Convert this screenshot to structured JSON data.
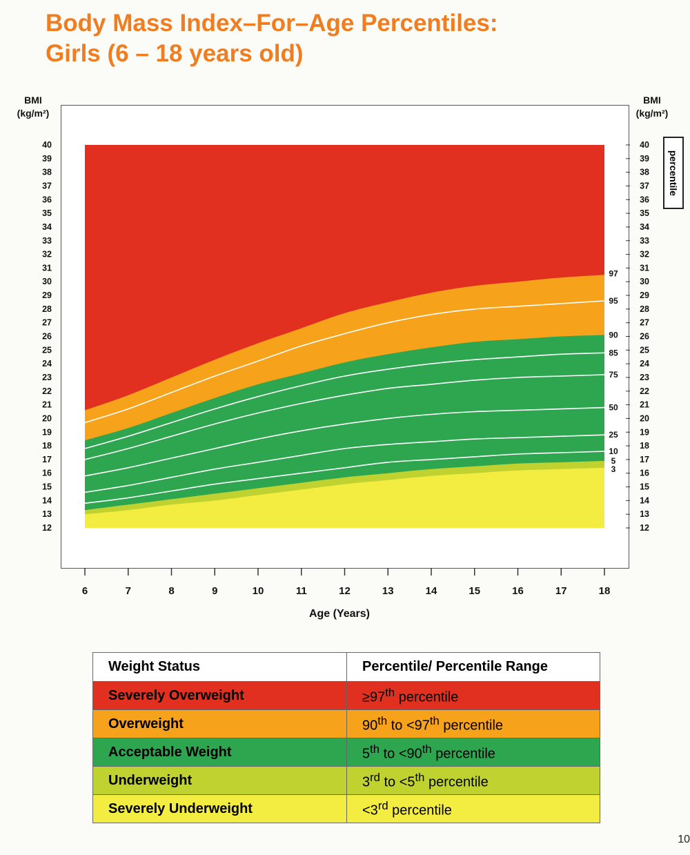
{
  "title_line1": "Body Mass Index–For–Age Percentiles:",
  "title_line2": "Girls (6 – 18 years old)",
  "y_unit_top": "BMI",
  "y_unit_bottom": "(kg/m²)",
  "percentile_box": "percentile",
  "page_number": "10",
  "chart_data": {
    "type": "area",
    "title": "Body Mass Index–For–Age Percentiles: Girls (6 – 18 years old)",
    "xlabel": "Age (Years)",
    "ylabel": "BMI (kg/m²)",
    "xlim": [
      6,
      18
    ],
    "ylim": [
      12,
      40
    ],
    "x_ticks": [
      6,
      7,
      8,
      9,
      10,
      11,
      12,
      13,
      14,
      15,
      16,
      17,
      18
    ],
    "y_ticks": [
      12,
      13,
      14,
      15,
      16,
      17,
      18,
      19,
      20,
      21,
      22,
      23,
      24,
      25,
      26,
      27,
      28,
      29,
      30,
      31,
      32,
      33,
      34,
      35,
      36,
      37,
      38,
      39,
      40
    ],
    "x": [
      6,
      7,
      8,
      9,
      10,
      11,
      12,
      13,
      14,
      15,
      16,
      17,
      18
    ],
    "series": [
      {
        "name": "97",
        "values": [
          20.6,
          21.7,
          23.0,
          24.3,
          25.5,
          26.6,
          27.7,
          28.5,
          29.2,
          29.7,
          30.0,
          30.3,
          30.5
        ]
      },
      {
        "name": "95",
        "values": [
          19.7,
          20.7,
          21.9,
          23.1,
          24.2,
          25.3,
          26.2,
          27.0,
          27.6,
          28.0,
          28.2,
          28.4,
          28.6
        ]
      },
      {
        "name": "90",
        "values": [
          18.4,
          19.3,
          20.4,
          21.5,
          22.5,
          23.3,
          24.1,
          24.7,
          25.2,
          25.6,
          25.8,
          26.0,
          26.1
        ]
      },
      {
        "name": "85",
        "values": [
          17.8,
          18.7,
          19.7,
          20.7,
          21.6,
          22.4,
          23.1,
          23.6,
          24.0,
          24.3,
          24.5,
          24.7,
          24.8
        ]
      },
      {
        "name": "75",
        "values": [
          17.0,
          17.8,
          18.7,
          19.6,
          20.4,
          21.1,
          21.7,
          22.2,
          22.5,
          22.8,
          23.0,
          23.1,
          23.2
        ]
      },
      {
        "name": "50",
        "values": [
          15.8,
          16.4,
          17.1,
          17.8,
          18.5,
          19.1,
          19.6,
          20.0,
          20.3,
          20.5,
          20.6,
          20.7,
          20.8
        ]
      },
      {
        "name": "25",
        "values": [
          14.6,
          15.1,
          15.7,
          16.3,
          16.8,
          17.3,
          17.8,
          18.1,
          18.3,
          18.5,
          18.6,
          18.7,
          18.8
        ]
      },
      {
        "name": "10",
        "values": [
          13.8,
          14.2,
          14.7,
          15.2,
          15.6,
          16.0,
          16.4,
          16.8,
          17.0,
          17.2,
          17.4,
          17.5,
          17.6
        ]
      },
      {
        "name": "5",
        "values": [
          13.3,
          13.7,
          14.1,
          14.5,
          14.9,
          15.3,
          15.7,
          16.0,
          16.3,
          16.5,
          16.7,
          16.8,
          16.9
        ]
      },
      {
        "name": "3",
        "values": [
          13.0,
          13.3,
          13.7,
          14.0,
          14.4,
          14.8,
          15.2,
          15.5,
          15.8,
          16.0,
          16.2,
          16.3,
          16.4
        ]
      }
    ],
    "band_colors": {
      "severely_overweight": "#e1301f",
      "overweight": "#f7a21b",
      "acceptable": "#2ea650",
      "underweight": "#bfd230",
      "severely_underweight": "#f3ec41"
    }
  },
  "legend": {
    "header_status": "Weight Status",
    "header_range": "Percentile/ Percentile Range",
    "rows": [
      {
        "status": "Severely Overweight",
        "range_html": "≥97<sup>th</sup> percentile",
        "color": "#e1301f"
      },
      {
        "status": "Overweight",
        "range_html": "90<sup>th</sup> to <97<sup>th</sup> percentile",
        "color": "#f7a21b"
      },
      {
        "status": "Acceptable Weight",
        "range_html": "5<sup>th</sup> to <90<sup>th</sup> percentile",
        "color": "#2ea650"
      },
      {
        "status": "Underweight",
        "range_html": "3<sup>rd</sup> to <5<sup>th</sup> percentile",
        "color": "#bfd230"
      },
      {
        "status": "Severely Underweight",
        "range_html": "<3<sup>rd</sup> percentile",
        "color": "#f3ec41"
      }
    ]
  }
}
